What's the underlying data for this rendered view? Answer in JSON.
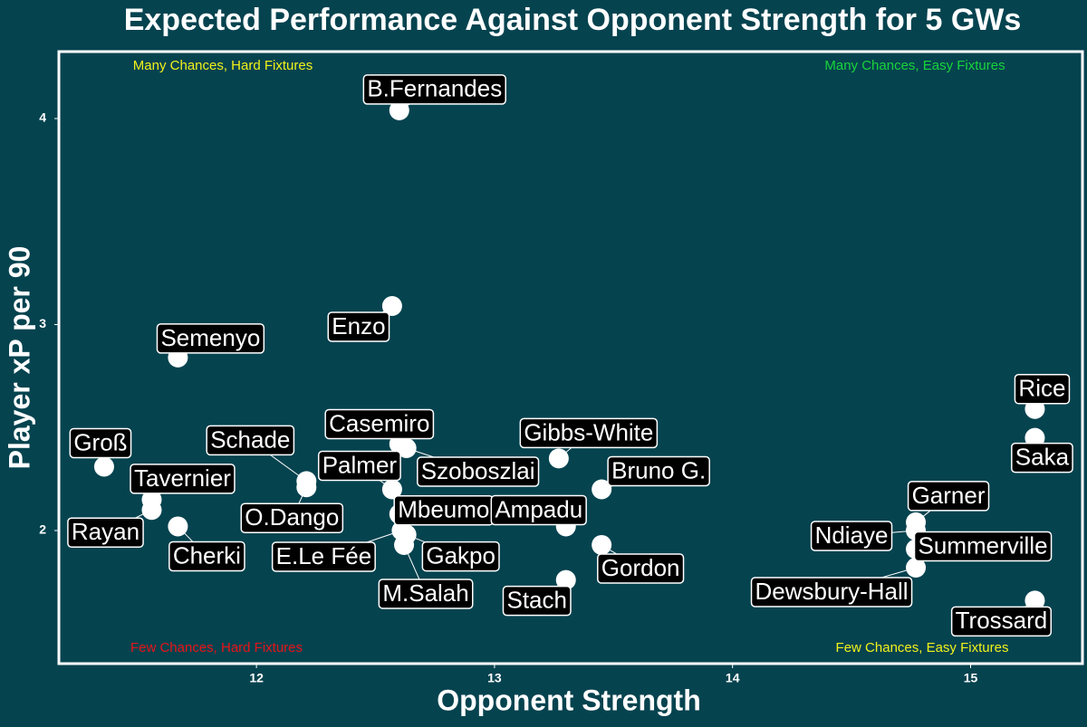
{
  "chart_data": {
    "type": "scatter",
    "title": "Expected Performance Against Opponent Strength for 5 GWs",
    "xlabel": "Opponent Strength",
    "ylabel": "Player xP per 90",
    "labels": [
      "B.Fernandes",
      "Enzo",
      "Semenyo",
      "Groß",
      "Tavernier",
      "Rayan",
      "Cherki",
      "Schade",
      "O.Dango",
      "Casemiro",
      "Szoboszlai",
      "Palmer",
      "Mbeumo",
      "E.Le Fée",
      "M.Salah",
      "Gakpo",
      "Gibbs-White",
      "Bruno G.",
      "Ampadu",
      "Gordon",
      "Stach",
      "Rice",
      "Saka",
      "Garner",
      "Ndiaye",
      "Summerville",
      "Dewsbury-Hall",
      "Trossard"
    ],
    "x": [
      12.6,
      12.57,
      11.67,
      11.36,
      11.56,
      11.56,
      11.67,
      12.21,
      12.21,
      12.6,
      12.63,
      12.57,
      12.6,
      12.61,
      12.62,
      12.63,
      13.27,
      13.45,
      13.3,
      13.45,
      13.3,
      15.27,
      15.27,
      14.77,
      14.77,
      14.77,
      14.77,
      15.27
    ],
    "values": [
      4.04,
      3.09,
      2.84,
      2.31,
      2.15,
      2.1,
      2.02,
      2.24,
      2.21,
      2.42,
      2.4,
      2.2,
      2.08,
      2.0,
      1.93,
      1.98,
      2.35,
      2.2,
      2.02,
      1.93,
      1.76,
      2.59,
      2.45,
      2.04,
      2.0,
      1.91,
      1.82,
      1.66
    ],
    "color": "#ffffff",
    "xlim": [
      11.17,
      15.47
    ],
    "ylim": [
      1.354,
      4.325
    ],
    "xticks": [
      12,
      13,
      14,
      15
    ],
    "yticks": [
      2,
      3,
      4
    ],
    "annotations": [
      {
        "text": "Many Chances, Hard Fixtures",
        "color": "#f2f21a"
      },
      {
        "text": "Many Chances, Easy Fixtures",
        "color": "#19d43a"
      },
      {
        "text": "Few Chances, Hard Fixtures",
        "color": "#e8141a"
      },
      {
        "text": "Few Chances, Easy Fixtures",
        "color": "#f2f21a"
      }
    ]
  }
}
